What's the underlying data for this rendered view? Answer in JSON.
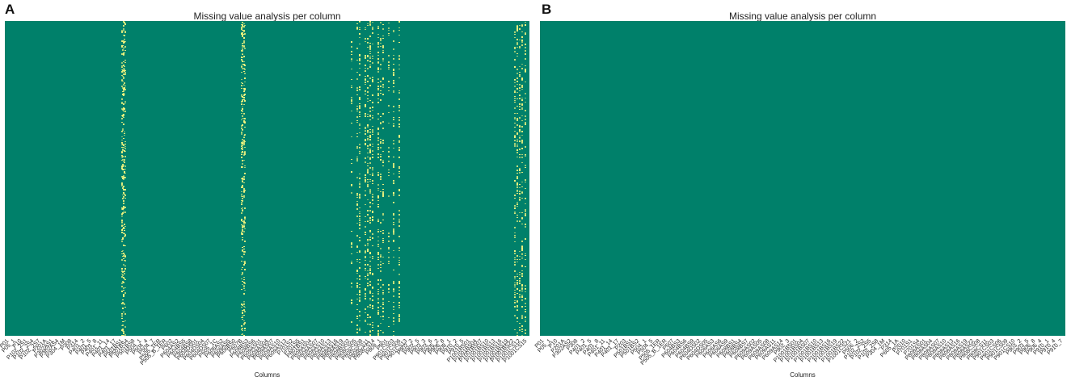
{
  "chart_data": [
    {
      "type": "heatmap",
      "panel": "A",
      "title": "Missing value analysis per column",
      "xlabel": "Columns",
      "ylabel": "",
      "colors": {
        "present": "#00806a",
        "missing": "#f4f57e"
      },
      "tick_labels": [
        "P01",
        "P05_1",
        "P10",
        "P102_2S1",
        "P102_2S4",
        "P102_2S7",
        "P201A",
        "P302AS1",
        "P302AS4",
        "P304_1M",
        "P308",
        "P314",
        "P401_2",
        "P401_5",
        "P401_8",
        "P401_11",
        "P401_14",
        "P401_17",
        "P501BS1",
        "P501BS4",
        "P501BS8",
        "P504_1",
        "P504_4",
        "P504_7",
        "P505_1ER",
        "P505_B_1ER",
        "P602",
        "P604AS2",
        "P604BS5",
        "P604BS8",
        "P604DS01",
        "P604DS04",
        "P604DS07",
        "P605_1C",
        "P606AS2",
        "P606AS5",
        "P606BS0",
        "P607B",
        "P608BS3",
        "P608BS6",
        "P609AS01",
        "P609AS04",
        "P609AS07",
        "P609AS10",
        "P609AS13",
        "P701S2",
        "P701S5",
        "P801BS1",
        "P808AS04",
        "P808AS07",
        "P808AS10",
        "P808AS13",
        "P808AS16",
        "P808AS19",
        "P808BS02",
        "P808CS05",
        "P808CS08",
        "P808CS11",
        "P808CS14",
        "P809_1",
        "P901",
        "P901CS03",
        "P901CS06",
        "P901CS13",
        "P902_2",
        "P902_5",
        "P903_3",
        "P903_6",
        "P905_2",
        "P906_8",
        "P908_1",
        "P910_2",
        "P910_5",
        "P1001BS01",
        "P1001BS04",
        "P1001BS07",
        "P1001BS10",
        "P1001BS13",
        "P1001BS16",
        "P1001BS19",
        "P1001BS22",
        "P1001CS12",
        "P1001CS15"
      ],
      "missing_column_positions": [
        0.222,
        0.223,
        0.225,
        0.227,
        0.228,
        0.45,
        0.452,
        0.454,
        0.456,
        0.66,
        0.67,
        0.675,
        0.685,
        0.69,
        0.695,
        0.7,
        0.71,
        0.715,
        0.72,
        0.73,
        0.74,
        0.75,
        0.97,
        0.975,
        0.98,
        0.985,
        0.99
      ]
    },
    {
      "type": "heatmap",
      "panel": "B",
      "title": "Missing value analysis per column",
      "xlabel": "Columns",
      "ylabel": "",
      "colors": {
        "present": "#00806a",
        "missing": "#f4f57e"
      },
      "tick_labels": [
        "P01",
        "P05_1",
        "P10",
        "P201A",
        "P302AS2",
        "P308",
        "P401_2",
        "P401_5",
        "P401_8",
        "P401_11",
        "P401_14",
        "P401_17",
        "P203",
        "P501BS1",
        "P501BS2",
        "P504_1",
        "P504_5",
        "P505_1ER",
        "P505_B_1ER",
        "P507",
        "P604BS3",
        "P604BS6",
        "P604BS9",
        "P604DS02",
        "P604DS05",
        "P606AS3",
        "P606AS6",
        "P606AS9",
        "P608BS1",
        "P608BS4",
        "P608BS7",
        "P609AS02",
        "P609AS05",
        "P609AS08",
        "P609AS11",
        "P609AS14",
        "P902_3",
        "P1001BS01",
        "P1001BS04",
        "P1001BS07",
        "P1001BS10",
        "P1001BS13",
        "P1001BS16",
        "P1001BS19",
        "P1001BS22",
        "P1001CS21",
        "P506_2",
        "P102_2S2",
        "P102_2S5",
        "P102_2S8",
        "P304_1M",
        "P314",
        "P605_1A",
        "P2010",
        "P701S1",
        "P701S4",
        "P808AS01",
        "P808AS04",
        "P808AS07",
        "P808AS10",
        "P808AS13",
        "P808AS16",
        "P808AS19",
        "P808AS22",
        "P808CS08",
        "P808CS11",
        "P901CS03",
        "P901CS06",
        "P901CS09",
        "P901CS10",
        "P903_2",
        "P903_5",
        "P906_8",
        "P906_4",
        "P910_1",
        "P910_4",
        "P910_7"
      ],
      "missing_column_positions": []
    }
  ]
}
